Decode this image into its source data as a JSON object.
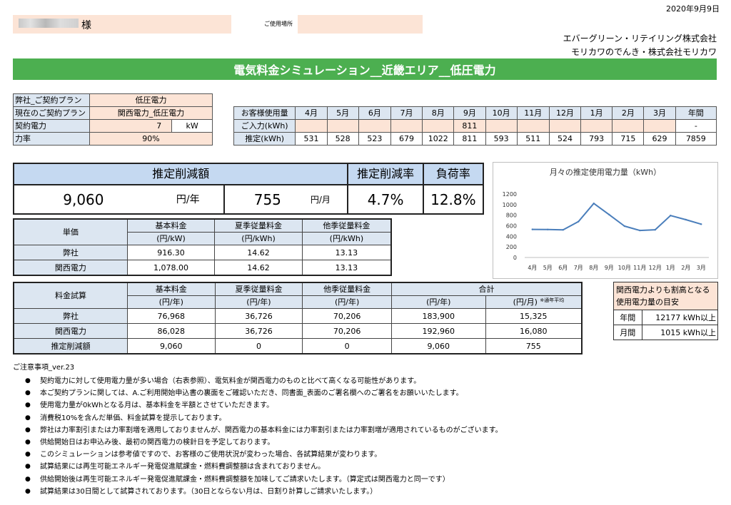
{
  "date": "2020年9月9日",
  "customer": {
    "suffix": "様",
    "address_label": "ご使用場所"
  },
  "companies": [
    "エバーグリーン・リテイリング株式会社",
    "モリカワのでんき・株式会社モリカワ"
  ],
  "title": "電気料金シミュレーション__近畿エリア__低圧電力",
  "plan": {
    "our_plan_label": "弊社_ご契約プラン",
    "our_plan_value": "低圧電力",
    "current_plan_label": "現在のご契約プラン",
    "current_plan_value": "関西電力_低圧電力",
    "contract_label": "契約電力",
    "contract_value": "7",
    "contract_unit": "kW",
    "pf_label": "力率",
    "pf_value": "90%"
  },
  "usage": {
    "header_label": "お客様使用量",
    "months": [
      "4月",
      "5月",
      "6月",
      "7月",
      "8月",
      "9月",
      "10月",
      "11月",
      "12月",
      "1月",
      "2月",
      "3月"
    ],
    "annual_label": "年間",
    "input_label": "ご入力(kWh)",
    "input_values": [
      "",
      "",
      "",
      "",
      "",
      "811",
      "",
      "",
      "",
      "",
      "",
      ""
    ],
    "input_annual": "-",
    "est_label": "推定(kWh)",
    "est_values": [
      "531",
      "528",
      "523",
      "679",
      "1022",
      "811",
      "593",
      "511",
      "524",
      "793",
      "715",
      "629"
    ],
    "est_annual": "7859"
  },
  "summary": {
    "reduction_label": "推定削減額",
    "rate_label": "推定削減率",
    "load_label": "負荷率",
    "annual_value": "9,060",
    "annual_unit": "円/年",
    "monthly_value": "755",
    "monthly_unit": "円/月",
    "rate_value": "4.7%",
    "load_value": "12.8%"
  },
  "unit_price": {
    "label": "単価",
    "col1": "基本料金",
    "col1_unit": "(円/kW)",
    "col2": "夏季従量料金",
    "col2_unit": "(円/kWh)",
    "col3": "他季従量料金",
    "col3_unit": "(円/kWh)",
    "rows": [
      {
        "name": "弊社",
        "base": "916.30",
        "summer": "14.62",
        "other": "13.13"
      },
      {
        "name": "関西電力",
        "base": "1,078.00",
        "summer": "14.62",
        "other": "13.13"
      }
    ]
  },
  "trial": {
    "label": "料金試算",
    "col1": "基本料金",
    "col1_unit": "(円/年)",
    "col2": "夏季従量料金",
    "col2_unit": "(円/年)",
    "col3": "他季従量料金",
    "col3_unit": "(円/年)",
    "total": "合計",
    "total_annual_unit": "(円/年)",
    "total_monthly_unit": "(円/月)",
    "avg_note": "※通年平均",
    "rows": [
      {
        "name": "弊社",
        "base": "76,968",
        "summer": "36,726",
        "other": "70,206",
        "annual": "183,900",
        "monthly": "15,325"
      },
      {
        "name": "関西電力",
        "base": "86,028",
        "summer": "36,726",
        "other": "70,206",
        "annual": "192,960",
        "monthly": "16,080"
      },
      {
        "name": "推定削減額",
        "base": "9,060",
        "summer": "0",
        "other": "0",
        "annual": "9,060",
        "monthly": "755"
      }
    ]
  },
  "guide": {
    "title": "関西電力よりも割高となる使用電力量の目安",
    "annual_label": "年間",
    "annual_value": "12177 kWh以上",
    "monthly_label": "月間",
    "monthly_value": "1015 kWh以上"
  },
  "notes": {
    "title": "ご注意事項_ver.23",
    "bullet": "●",
    "items": [
      "契約電力に対して使用電力量が多い場合（右表参照）、電気料金が関西電力のものと比べて高くなる可能性があります。",
      "本ご契約プランに関しては、A.ご利用開始申込書の裏面をご確認いただき、同書面_表面のご署名欄へのご署名をお願いいたします。",
      "使用電力量が0kWhとなる月は、基本料金を半額とさせていただきます。",
      "消費税10%を含んだ単価、料金試算を提示しております。",
      "弊社は力率割引または力率割増を適用しておりませんが、関西電力の基本料金には力率割引または力率割増が適用されているものがございます。",
      "供給開始日はお申込み後、最初の関西電力の検針日を予定しております。",
      "このシミュレーションは参考値ですので、お客様のご使用状況が変わった場合、各試算結果が変わります。",
      "試算結果には再生可能エネルギー発電促進賦課金・燃料費調整額は含まれておりません。",
      "供給開始後は再生可能エネルギー発電促進賦課金・燃料費調整額を加味してご請求いたします。（算定式は関西電力と同一です）",
      "試算結果は30日間として試算されております。（30日とならない月は、日割り計算しご請求いたします。）"
    ]
  },
  "chart_data": {
    "type": "line",
    "title": "月々の推定使用電力量（kWh）",
    "categories": [
      "4月",
      "5月",
      "6月",
      "7月",
      "8月",
      "9月",
      "10月",
      "11月",
      "12月",
      "1月",
      "2月",
      "3月"
    ],
    "values": [
      531,
      528,
      523,
      679,
      1022,
      811,
      593,
      511,
      524,
      793,
      715,
      629
    ],
    "ylim": [
      0,
      1200
    ],
    "yticks": [
      0,
      200,
      400,
      600,
      800,
      1000,
      1200
    ],
    "grid": false,
    "legend": "none",
    "line_color": "#4a7ebb"
  }
}
